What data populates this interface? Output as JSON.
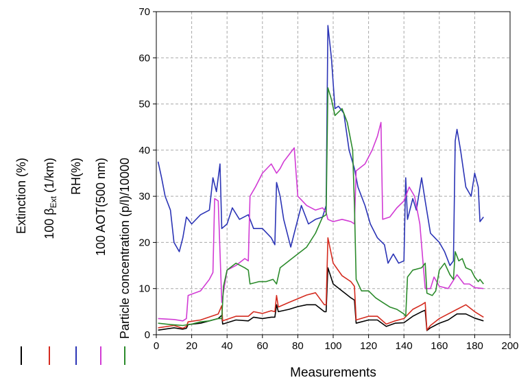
{
  "chart_data": {
    "type": "line",
    "title": "",
    "xlabel": "Measurements",
    "ylabel": "",
    "xlim": [
      0,
      200
    ],
    "ylim": [
      0,
      70
    ],
    "xticks": [
      0,
      20,
      40,
      60,
      80,
      100,
      120,
      140,
      160,
      180,
      200
    ],
    "yticks": [
      0,
      10,
      20,
      30,
      40,
      50,
      60,
      70
    ],
    "grid": true,
    "legend": "left-vertical",
    "series": [
      {
        "name": "Extinction (%)",
        "color": "#000000",
        "points": [
          [
            1,
            1
          ],
          [
            10,
            1.5
          ],
          [
            15,
            1.2
          ],
          [
            17,
            1.4
          ],
          [
            18,
            2.2
          ],
          [
            25,
            2.5
          ],
          [
            35,
            3.5
          ],
          [
            37,
            4.2
          ],
          [
            37.5,
            2.3
          ],
          [
            45,
            3.2
          ],
          [
            52,
            3
          ],
          [
            55,
            3.8
          ],
          [
            60,
            3.5
          ],
          [
            65,
            3.8
          ],
          [
            67,
            3.8
          ],
          [
            68,
            6.5
          ],
          [
            69,
            5
          ],
          [
            75,
            5.5
          ],
          [
            80,
            6.1
          ],
          [
            85,
            6.5
          ],
          [
            90,
            6.5
          ],
          [
            95,
            5
          ],
          [
            96,
            5
          ],
          [
            97,
            14.5
          ],
          [
            100,
            11
          ],
          [
            105,
            9.5
          ],
          [
            110,
            8
          ],
          [
            112,
            7.5
          ],
          [
            113,
            2.5
          ],
          [
            120,
            3.2
          ],
          [
            125,
            3.2
          ],
          [
            130,
            1.8
          ],
          [
            135,
            2.5
          ],
          [
            140,
            2.6
          ],
          [
            145,
            4
          ],
          [
            150,
            5
          ],
          [
            152,
            5.3
          ],
          [
            153,
            0.9
          ],
          [
            155,
            1.5
          ],
          [
            160,
            2.5
          ],
          [
            165,
            3.2
          ],
          [
            170,
            4.5
          ],
          [
            175,
            4.5
          ],
          [
            180,
            3.6
          ],
          [
            185,
            3
          ]
        ]
      },
      {
        "name": "100 β_Ext (1/km)",
        "name_main": "100 β",
        "name_sub": "Ext",
        "name_tail": " (1/km)",
        "color": "#d42a1e",
        "points": [
          [
            1,
            1.5
          ],
          [
            10,
            2
          ],
          [
            15,
            1.4
          ],
          [
            17,
            1.8
          ],
          [
            18,
            2.8
          ],
          [
            25,
            3.2
          ],
          [
            35,
            4.5
          ],
          [
            37,
            6.3
          ],
          [
            37.5,
            3
          ],
          [
            45,
            4
          ],
          [
            52,
            4
          ],
          [
            55,
            5
          ],
          [
            60,
            4.6
          ],
          [
            65,
            5.2
          ],
          [
            67,
            5
          ],
          [
            68,
            8.5
          ],
          [
            69,
            6
          ],
          [
            75,
            7
          ],
          [
            80,
            7.8
          ],
          [
            85,
            8.6
          ],
          [
            90,
            9.1
          ],
          [
            95,
            6.5
          ],
          [
            96,
            6.5
          ],
          [
            97,
            21
          ],
          [
            100,
            15.5
          ],
          [
            105,
            12.8
          ],
          [
            110,
            11.5
          ],
          [
            112,
            10.5
          ],
          [
            113,
            3.2
          ],
          [
            120,
            4
          ],
          [
            125,
            4
          ],
          [
            130,
            2.3
          ],
          [
            135,
            3
          ],
          [
            140,
            3.5
          ],
          [
            145,
            5.5
          ],
          [
            150,
            6.5
          ],
          [
            152,
            7
          ],
          [
            153,
            1
          ],
          [
            155,
            2
          ],
          [
            160,
            3.5
          ],
          [
            165,
            4.5
          ],
          [
            170,
            5.5
          ],
          [
            175,
            6.5
          ],
          [
            180,
            5
          ],
          [
            185,
            3.8
          ]
        ]
      },
      {
        "name": "RH(%)",
        "color": "#2a33b5",
        "points": [
          [
            1,
            37.5
          ],
          [
            3,
            34
          ],
          [
            5,
            30
          ],
          [
            8,
            27
          ],
          [
            10,
            20
          ],
          [
            13,
            18
          ],
          [
            15,
            21
          ],
          [
            17,
            25.5
          ],
          [
            20,
            24
          ],
          [
            25,
            26
          ],
          [
            30,
            27
          ],
          [
            32,
            34
          ],
          [
            34,
            31
          ],
          [
            36,
            37
          ],
          [
            37,
            23
          ],
          [
            40,
            24
          ],
          [
            43,
            27.5
          ],
          [
            47,
            25
          ],
          [
            52,
            26
          ],
          [
            55,
            23
          ],
          [
            60,
            23
          ],
          [
            65,
            21
          ],
          [
            67,
            19.5
          ],
          [
            68,
            33
          ],
          [
            70,
            30
          ],
          [
            72,
            25
          ],
          [
            76,
            19
          ],
          [
            78,
            22
          ],
          [
            82,
            28
          ],
          [
            86,
            24
          ],
          [
            90,
            25
          ],
          [
            94,
            25.5
          ],
          [
            96,
            28
          ],
          [
            97,
            67
          ],
          [
            99,
            60
          ],
          [
            101,
            49
          ],
          [
            103,
            49.5
          ],
          [
            106,
            48
          ],
          [
            109,
            40
          ],
          [
            112,
            36
          ],
          [
            114,
            32
          ],
          [
            118,
            28
          ],
          [
            121,
            24
          ],
          [
            125,
            21
          ],
          [
            129,
            19.5
          ],
          [
            131,
            15.5
          ],
          [
            134,
            17.5
          ],
          [
            137,
            15.5
          ],
          [
            140,
            16
          ],
          [
            141,
            34
          ],
          [
            142,
            25
          ],
          [
            145,
            29.5
          ],
          [
            147,
            27
          ],
          [
            150,
            34
          ],
          [
            152,
            29
          ],
          [
            155,
            22
          ],
          [
            160,
            20
          ],
          [
            163,
            18
          ],
          [
            166,
            15
          ],
          [
            168,
            16
          ],
          [
            169,
            42
          ],
          [
            170,
            44.5
          ],
          [
            172,
            40
          ],
          [
            175,
            32
          ],
          [
            178,
            30
          ],
          [
            180,
            35
          ],
          [
            182,
            32
          ],
          [
            183,
            24.5
          ],
          [
            185,
            25.5
          ]
        ]
      },
      {
        "name": "100 AOT(500 nm)",
        "color": "#d13ad4",
        "points": [
          [
            1,
            3.5
          ],
          [
            10,
            3.3
          ],
          [
            15,
            3
          ],
          [
            17,
            3.5
          ],
          [
            18,
            8.5
          ],
          [
            25,
            9.5
          ],
          [
            30,
            12
          ],
          [
            32,
            13.5
          ],
          [
            33,
            29.5
          ],
          [
            35,
            29
          ],
          [
            37,
            7
          ],
          [
            40,
            14
          ],
          [
            45,
            15
          ],
          [
            50,
            16.5
          ],
          [
            52,
            16
          ],
          [
            53,
            30
          ],
          [
            56,
            32
          ],
          [
            60,
            35
          ],
          [
            65,
            37
          ],
          [
            68,
            35
          ],
          [
            70,
            36
          ],
          [
            72,
            37.5
          ],
          [
            75,
            39
          ],
          [
            78,
            40.5
          ],
          [
            80,
            30
          ],
          [
            85,
            28
          ],
          [
            90,
            27
          ],
          [
            94,
            27.5
          ],
          [
            96,
            26.5
          ],
          [
            97,
            25
          ],
          [
            100,
            24.5
          ],
          [
            105,
            25
          ],
          [
            110,
            24.5
          ],
          [
            112,
            24
          ],
          [
            113,
            35.5
          ],
          [
            118,
            37
          ],
          [
            122,
            40
          ],
          [
            125,
            43
          ],
          [
            127,
            46
          ],
          [
            128,
            25
          ],
          [
            132,
            25.5
          ],
          [
            136,
            27.5
          ],
          [
            140,
            29
          ],
          [
            143,
            32
          ],
          [
            146,
            30
          ],
          [
            149,
            24
          ],
          [
            152,
            10
          ],
          [
            155,
            10
          ],
          [
            157,
            12.5
          ],
          [
            160,
            10.5
          ],
          [
            165,
            10
          ],
          [
            170,
            13
          ],
          [
            174,
            11
          ],
          [
            177,
            11
          ],
          [
            180,
            10.2
          ],
          [
            185,
            10
          ]
        ]
      },
      {
        "name": "Particle concentration (p/l)/10000",
        "color": "#2a8a2a",
        "points": [
          [
            1,
            2.5
          ],
          [
            8,
            2.2
          ],
          [
            15,
            2
          ],
          [
            20,
            2.3
          ],
          [
            25,
            2.8
          ],
          [
            30,
            3
          ],
          [
            35,
            3.5
          ],
          [
            37,
            3.5
          ],
          [
            38,
            10.5
          ],
          [
            40,
            14
          ],
          [
            45,
            15.5
          ],
          [
            50,
            14.5
          ],
          [
            52,
            14
          ],
          [
            53,
            11
          ],
          [
            58,
            11.5
          ],
          [
            62,
            11.5
          ],
          [
            66,
            12
          ],
          [
            68,
            11
          ],
          [
            70,
            14.5
          ],
          [
            75,
            16
          ],
          [
            80,
            17.5
          ],
          [
            85,
            19
          ],
          [
            90,
            22
          ],
          [
            94,
            25.5
          ],
          [
            96,
            26
          ],
          [
            97,
            53.5
          ],
          [
            99,
            51
          ],
          [
            101,
            47.5
          ],
          [
            105,
            49
          ],
          [
            108,
            46
          ],
          [
            111,
            40
          ],
          [
            112,
            28
          ],
          [
            113,
            12
          ],
          [
            116,
            9.5
          ],
          [
            120,
            9.5
          ],
          [
            124,
            8
          ],
          [
            128,
            7
          ],
          [
            132,
            6
          ],
          [
            136,
            5.5
          ],
          [
            140,
            4.5
          ],
          [
            141,
            4
          ],
          [
            142,
            12.5
          ],
          [
            145,
            14
          ],
          [
            150,
            14.5
          ],
          [
            152,
            15.5
          ],
          [
            153,
            9
          ],
          [
            156,
            8.5
          ],
          [
            158,
            9.5
          ],
          [
            160,
            14
          ],
          [
            163,
            15.5
          ],
          [
            166,
            13
          ],
          [
            168,
            12
          ],
          [
            169,
            18
          ],
          [
            171,
            16
          ],
          [
            173,
            16.5
          ],
          [
            175,
            14.5
          ],
          [
            178,
            14
          ],
          [
            180,
            12.5
          ],
          [
            182,
            11.5
          ],
          [
            183,
            12
          ],
          [
            185,
            11
          ]
        ]
      }
    ]
  }
}
